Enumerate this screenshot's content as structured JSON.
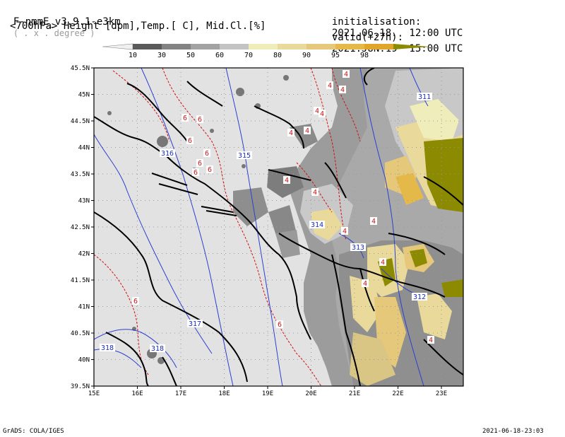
{
  "header": {
    "model": "F-nmmE_v3.9.1-e3km",
    "grid_note": "( . x . degree )",
    "field_desc": "<700hPa> Height [dpm],Temp.[ C], Mid.Cl.[%]",
    "init_label": "initialisation:",
    "init_value": "2021.06.18.  12:00 UTC",
    "valid_label": "valid(+27h):",
    "valid_value": "2021.JUN.19  15:00 UTC"
  },
  "colorbar": {
    "ticks": [
      "10",
      "30",
      "50",
      "60",
      "70",
      "80",
      "90",
      "95",
      "98"
    ],
    "colors": [
      "#5a5a5a",
      "#838383",
      "#a3a3a3",
      "#c3c3c3",
      "#efedb9",
      "#e9d99a",
      "#e6c87a",
      "#e5b84a",
      "#e0a52a",
      "#8c8a00"
    ]
  },
  "map": {
    "lat_labels": [
      "45.5N",
      "45N",
      "44.5N",
      "44N",
      "43.5N",
      "43N",
      "42.5N",
      "42N",
      "41.5N",
      "41N",
      "40.5N",
      "40N",
      "39.5N"
    ],
    "lon_labels": [
      "15E",
      "16E",
      "17E",
      "18E",
      "19E",
      "20E",
      "21E",
      "22E",
      "23E"
    ],
    "height_labels": [
      "311",
      "316",
      "315",
      "314",
      "313",
      "312",
      "317",
      "318",
      "318"
    ],
    "temp_labels": [
      "6",
      "6",
      "6",
      "6",
      "6",
      "6",
      "6",
      "6",
      "6",
      "4",
      "4",
      "4",
      "4",
      "4",
      "4",
      "4",
      "4",
      "4",
      "4",
      "4",
      "4",
      "4",
      "4"
    ]
  },
  "footer": {
    "left": "GrADS: COLA/IGES",
    "right": "2021-06-18-23:03"
  }
}
